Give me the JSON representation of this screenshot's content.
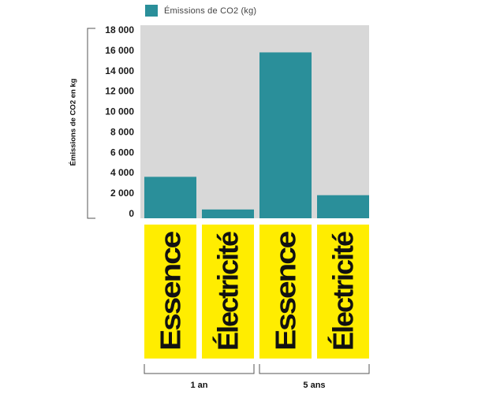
{
  "legend": {
    "label": "Émissions de CO2 (kg)",
    "color": "#2a8f9a"
  },
  "chart_data": {
    "type": "bar",
    "title": "",
    "xlabel": "",
    "ylabel": "Émissions de CO2 en kg",
    "ylim": [
      0,
      18000
    ],
    "yticks": [
      0,
      2000,
      4000,
      6000,
      8000,
      10000,
      12000,
      14000,
      16000,
      18000
    ],
    "ytick_labels": [
      "0",
      "2 000",
      "4 000",
      "6 000",
      "8 000",
      "10 000",
      "12 000",
      "14 000",
      "16 000",
      "18 000"
    ],
    "categories": [
      "Essence",
      "Électricité",
      "Essence",
      "Électricité"
    ],
    "groups": [
      {
        "label": "1 an",
        "categories": [
          0,
          1
        ]
      },
      {
        "label": "5 ans",
        "categories": [
          2,
          3
        ]
      }
    ],
    "series": [
      {
        "name": "Émissions de CO2 (kg)",
        "values": [
          3600,
          400,
          15800,
          1800
        ]
      }
    ],
    "colors": {
      "bar": "#2a8f9a",
      "plot_background": "#d8d8d8",
      "category_box": "#ffed00"
    },
    "grid": false,
    "legend_position": "top"
  }
}
